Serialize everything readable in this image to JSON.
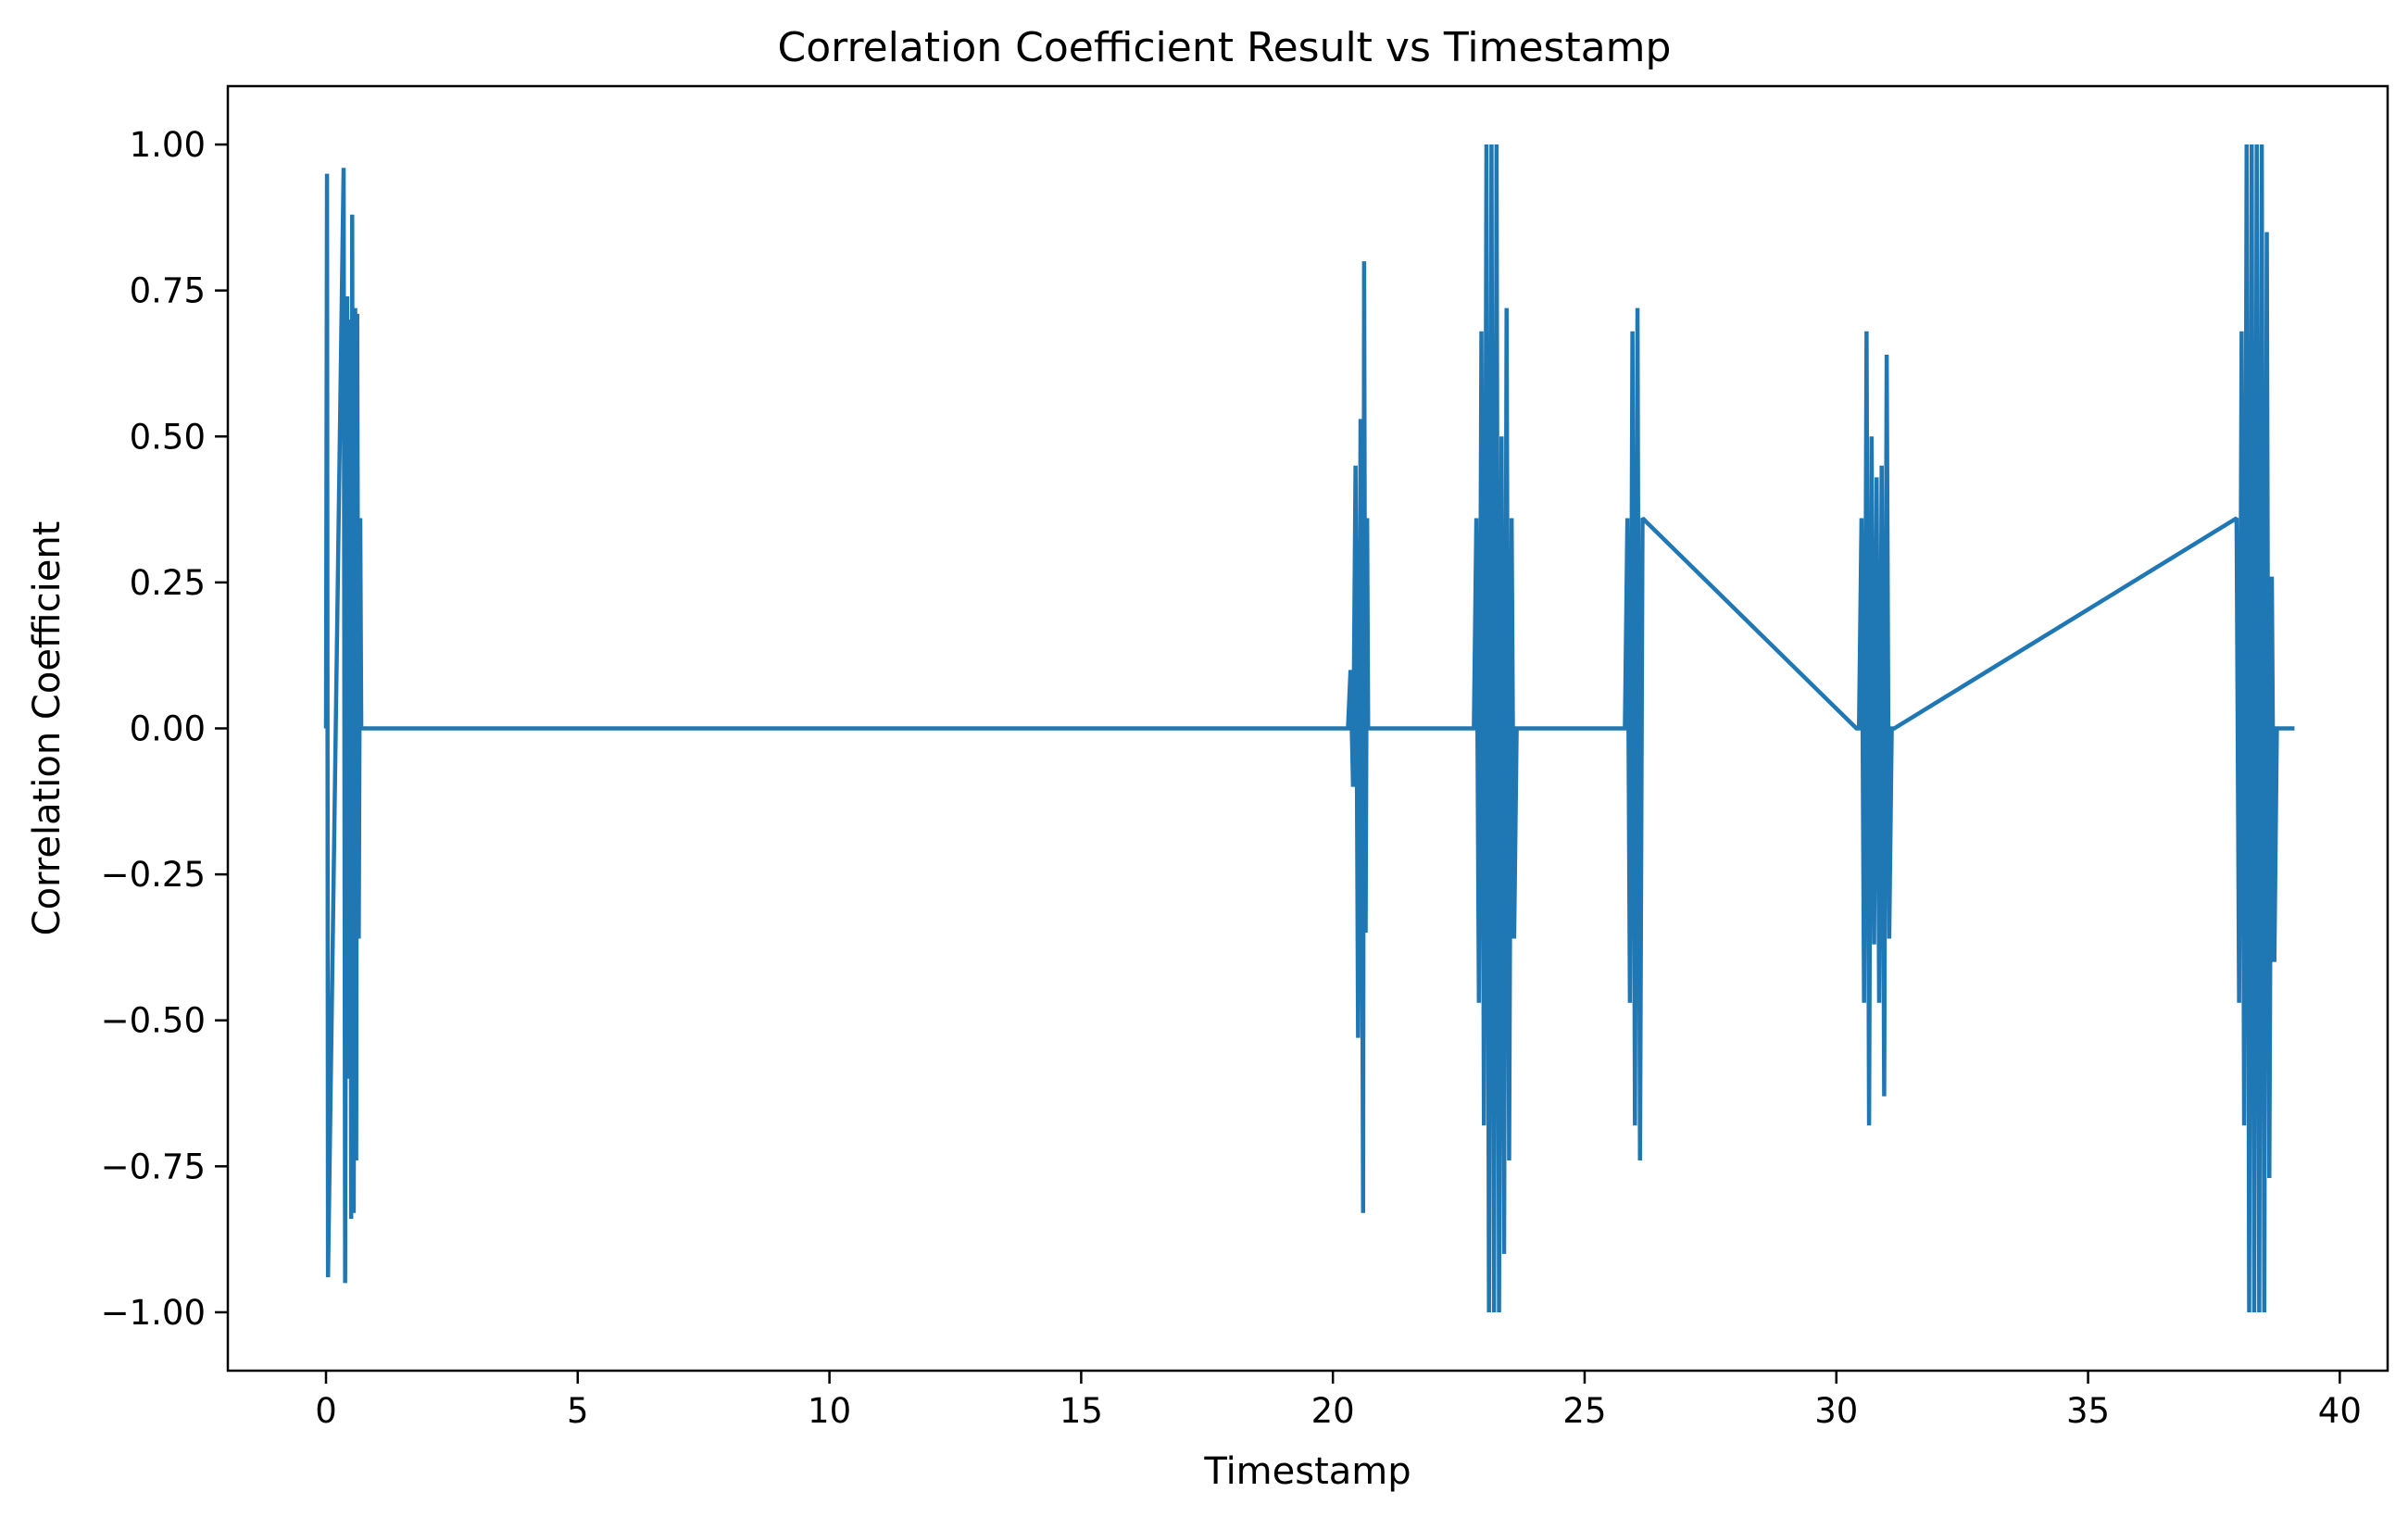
{
  "chart_data": {
    "type": "line",
    "title": "Correlation Coefficient Result vs Timestamp",
    "xlabel": "Timestamp",
    "ylabel": "Correlation Coefficient",
    "xlim": [
      -1.95,
      40.95
    ],
    "ylim": [
      -1.1,
      1.1
    ],
    "xticks": [
      0,
      5,
      10,
      15,
      20,
      25,
      30,
      35,
      40
    ],
    "xtick_labels": [
      "0",
      "5",
      "10",
      "15",
      "20",
      "25",
      "30",
      "35",
      "40"
    ],
    "yticks": [
      1.0,
      0.75,
      0.5,
      0.25,
      0.0,
      -0.25,
      -0.5,
      -0.75,
      -1.0
    ],
    "ytick_labels": [
      "1.00",
      "0.75",
      "0.50",
      "0.25",
      "0.00",
      "−0.25",
      "−0.50",
      "−0.75",
      "−1.00"
    ],
    "grid": false,
    "legend": "none",
    "series": [
      {
        "color": "#1f77b4",
        "x": [
          0.0,
          0.02,
          0.04,
          0.35,
          0.38,
          0.42,
          0.45,
          0.48,
          0.5,
          0.52,
          0.55,
          0.58,
          0.6,
          0.62,
          0.65,
          0.68,
          0.7,
          0.72,
          0.75,
          0.8,
          20.3,
          20.35,
          20.4,
          20.45,
          20.5,
          20.55,
          20.6,
          20.62,
          20.65,
          20.68,
          20.7,
          20.72,
          20.75,
          20.8,
          22.8,
          22.85,
          22.9,
          22.95,
          23.0,
          23.05,
          23.1,
          23.15,
          23.2,
          23.25,
          23.3,
          23.35,
          23.4,
          23.45,
          23.5,
          23.55,
          23.6,
          23.65,
          23.7,
          25.8,
          25.85,
          25.9,
          25.95,
          26.0,
          26.05,
          26.1,
          26.15,
          30.4,
          30.45,
          30.5,
          30.55,
          30.6,
          30.65,
          30.7,
          30.75,
          30.8,
          30.85,
          30.9,
          30.95,
          31.0,
          31.05,
          31.1,
          31.15,
          37.95,
          38.0,
          38.05,
          38.1,
          38.15,
          38.2,
          38.25,
          38.3,
          38.35,
          38.4,
          38.45,
          38.5,
          38.55,
          38.6,
          38.65,
          38.7,
          38.75,
          38.8,
          38.85,
          38.9,
          38.95,
          39.0,
          39.05,
          39.1
        ],
        "y": [
          0.0,
          0.95,
          -0.94,
          0.96,
          -0.95,
          0.74,
          -0.6,
          0.7,
          -0.84,
          0.88,
          -0.83,
          0.72,
          -0.74,
          0.71,
          -0.36,
          0.36,
          0.0,
          0.0,
          0.0,
          0.0,
          0.0,
          0.1,
          -0.1,
          0.45,
          -0.53,
          0.53,
          -0.83,
          0.8,
          -0.35,
          0.36,
          0.0,
          0.0,
          0.0,
          0.0,
          0.0,
          0.36,
          -0.47,
          0.68,
          -0.68,
          1.0,
          -1.0,
          1.0,
          -1.0,
          1.0,
          -1.0,
          0.5,
          -0.9,
          0.72,
          -0.74,
          0.36,
          -0.36,
          0.0,
          0.0,
          0.0,
          0.36,
          -0.47,
          0.68,
          -0.68,
          0.72,
          -0.74,
          0.36,
          0.0,
          0.0,
          0.36,
          -0.47,
          0.68,
          -0.68,
          0.5,
          -0.37,
          0.43,
          -0.47,
          0.45,
          -0.63,
          0.64,
          -0.36,
          0.0,
          0.0,
          0.36,
          -0.47,
          0.68,
          -0.68,
          1.0,
          -1.0,
          1.0,
          -1.0,
          1.0,
          -1.0,
          1.0,
          -1.0,
          0.85,
          -0.77,
          0.26,
          -0.4,
          0.0,
          0.0,
          0.0,
          0.0,
          0.0,
          0.0,
          0.0,
          0.0
        ]
      }
    ]
  }
}
